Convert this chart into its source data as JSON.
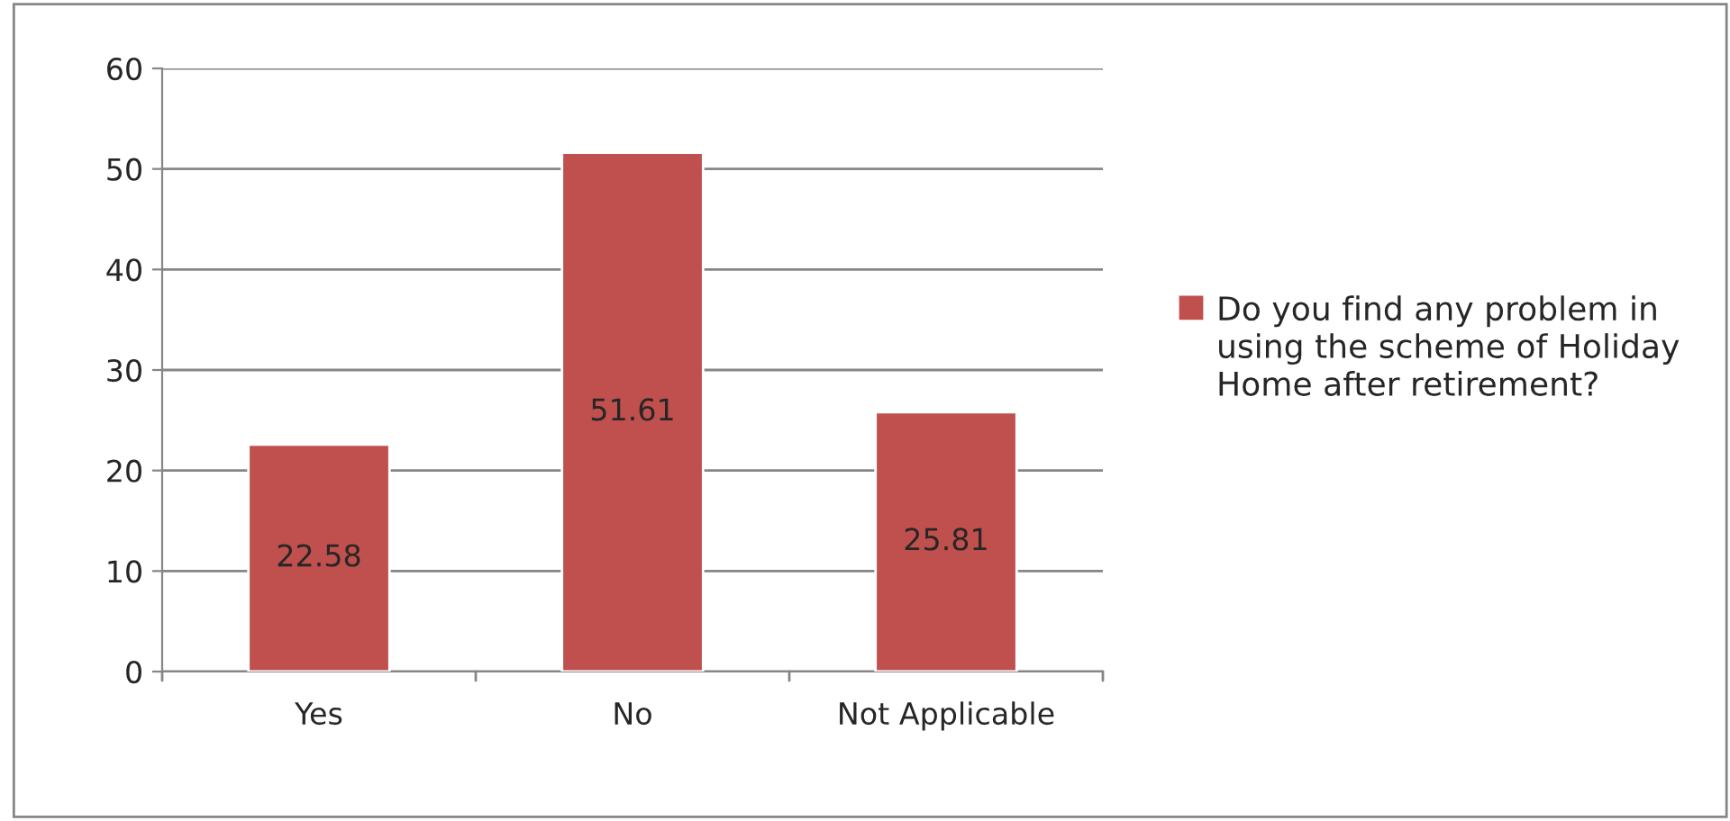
{
  "chart_data": {
    "type": "bar",
    "categories": [
      "Yes",
      "No",
      "Not Applicable"
    ],
    "series": [
      {
        "name": "Do you find any problem in using the scheme of Holiday Home after retirement?",
        "color": "#c0504d",
        "values": [
          22.58,
          51.61,
          25.81
        ]
      }
    ],
    "ylim": [
      0,
      60
    ],
    "yticks": [
      0,
      10,
      20,
      30,
      40,
      50,
      60
    ],
    "grid": "y",
    "legend": "right",
    "data_labels": true
  }
}
